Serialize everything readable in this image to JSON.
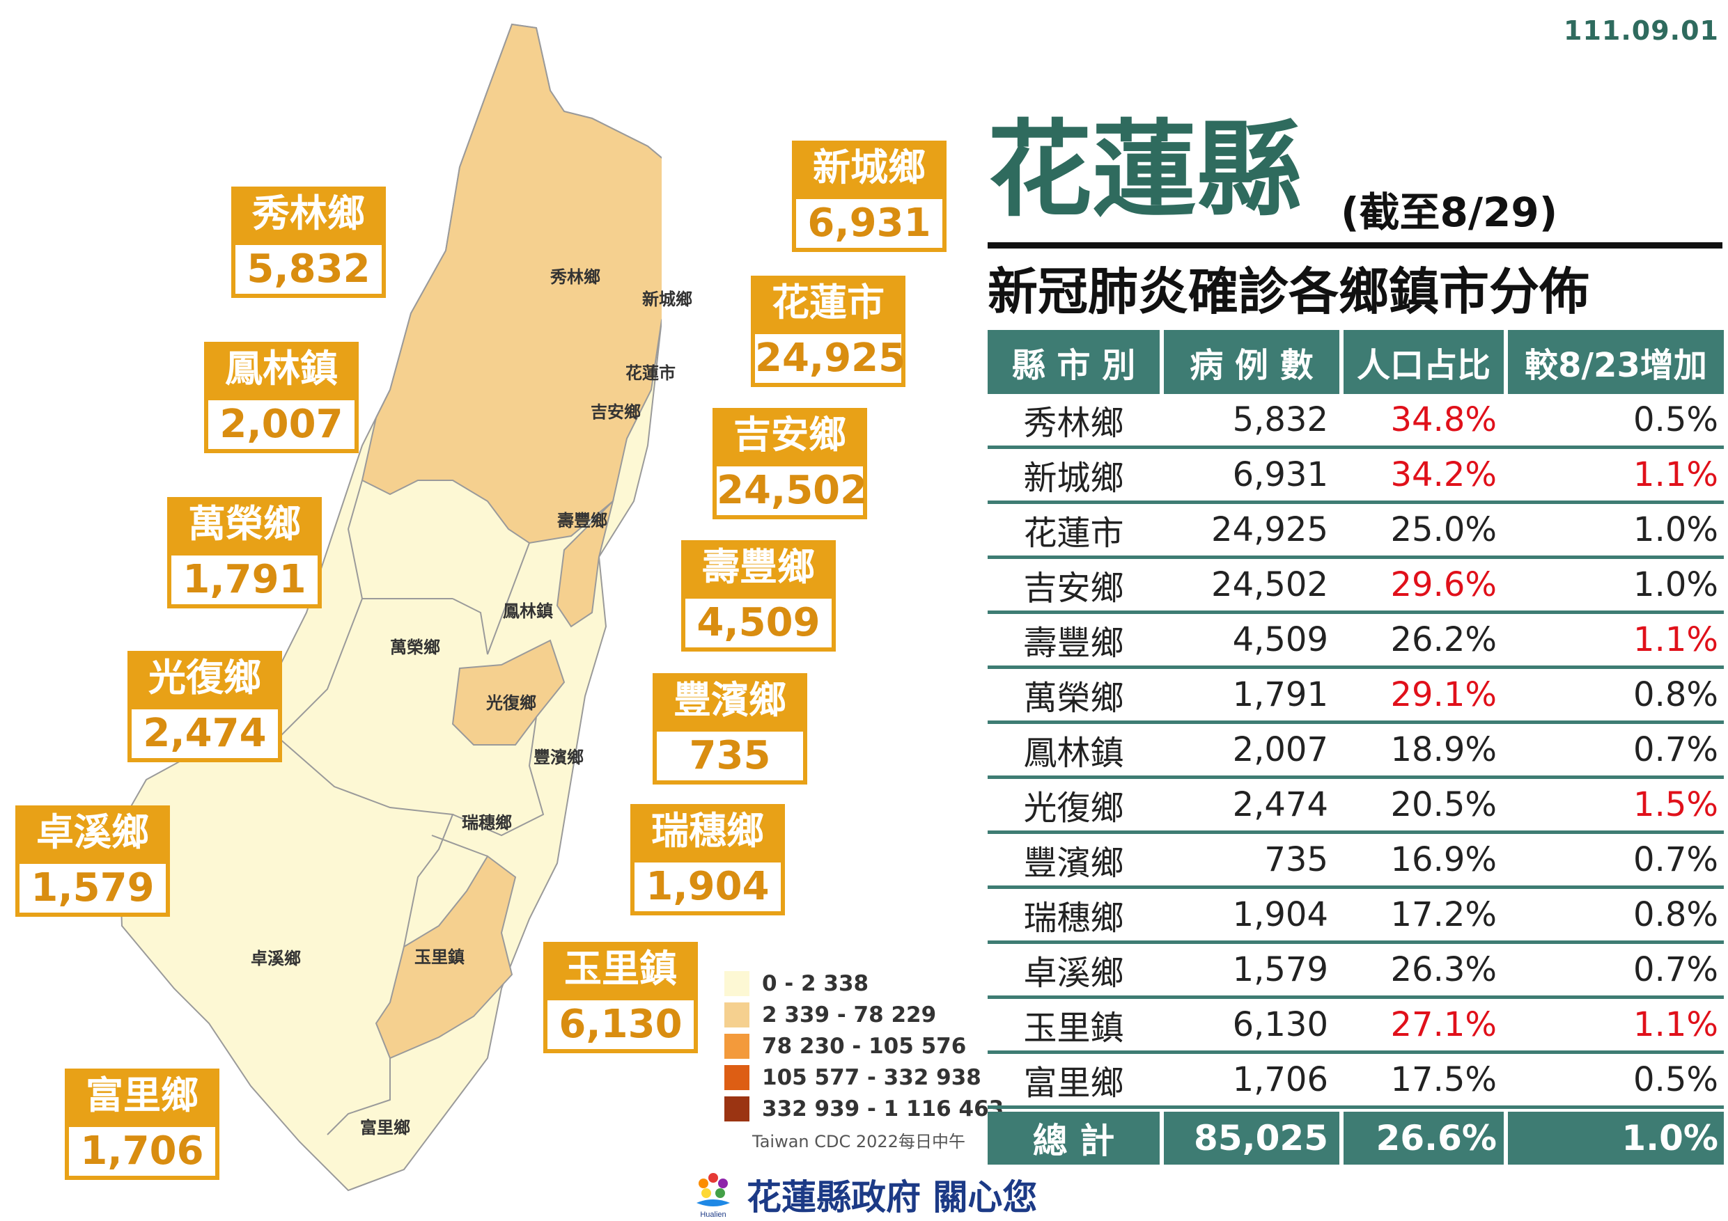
{
  "date": "111.09.01",
  "title": "花蓮縣",
  "title_note": "(截至8/29)",
  "subtitle": "新冠肺炎確診各鄉鎮市分佈",
  "table": {
    "headers": [
      "縣 市 別",
      "病 例 數",
      "人口占比",
      "較8/23增加"
    ],
    "rows": [
      {
        "name": "秀林鄉",
        "cases": "5,832",
        "ratio": "34.8%",
        "ratio_red": true,
        "inc": "0.5%",
        "inc_red": false
      },
      {
        "name": "新城鄉",
        "cases": "6,931",
        "ratio": "34.2%",
        "ratio_red": true,
        "inc": "1.1%",
        "inc_red": true
      },
      {
        "name": "花蓮市",
        "cases": "24,925",
        "ratio": "25.0%",
        "ratio_red": false,
        "inc": "1.0%",
        "inc_red": false
      },
      {
        "name": "吉安鄉",
        "cases": "24,502",
        "ratio": "29.6%",
        "ratio_red": true,
        "inc": "1.0%",
        "inc_red": false
      },
      {
        "name": "壽豐鄉",
        "cases": "4,509",
        "ratio": "26.2%",
        "ratio_red": false,
        "inc": "1.1%",
        "inc_red": true
      },
      {
        "name": "萬榮鄉",
        "cases": "1,791",
        "ratio": "29.1%",
        "ratio_red": true,
        "inc": "0.8%",
        "inc_red": false
      },
      {
        "name": "鳳林鎮",
        "cases": "2,007",
        "ratio": "18.9%",
        "ratio_red": false,
        "inc": "0.7%",
        "inc_red": false
      },
      {
        "name": "光復鄉",
        "cases": "2,474",
        "ratio": "20.5%",
        "ratio_red": false,
        "inc": "1.5%",
        "inc_red": true
      },
      {
        "name": "豐濱鄉",
        "cases": "735",
        "ratio": "16.9%",
        "ratio_red": false,
        "inc": "0.7%",
        "inc_red": false
      },
      {
        "name": "瑞穗鄉",
        "cases": "1,904",
        "ratio": "17.2%",
        "ratio_red": false,
        "inc": "0.8%",
        "inc_red": false
      },
      {
        "name": "卓溪鄉",
        "cases": "1,579",
        "ratio": "26.3%",
        "ratio_red": false,
        "inc": "0.7%",
        "inc_red": false
      },
      {
        "name": "玉里鎮",
        "cases": "6,130",
        "ratio": "27.1%",
        "ratio_red": true,
        "inc": "1.1%",
        "inc_red": true
      },
      {
        "name": "富里鄉",
        "cases": "1,706",
        "ratio": "17.5%",
        "ratio_red": false,
        "inc": "0.5%",
        "inc_red": false
      }
    ],
    "total": {
      "label": "總 計",
      "cases": "85,025",
      "ratio": "26.6%",
      "inc": "1.0%"
    }
  },
  "map_callouts": {
    "xiulin": {
      "name": "秀林鄉",
      "value": "5,832"
    },
    "xincheng": {
      "name": "新城鄉",
      "value": "6,931"
    },
    "hualien": {
      "name": "花蓮市",
      "value": "24,925"
    },
    "fenglin": {
      "name": "鳳林鎮",
      "value": "2,007"
    },
    "jian": {
      "name": "吉安鄉",
      "value": "24,502"
    },
    "wanrong": {
      "name": "萬榮鄉",
      "value": "1,791"
    },
    "shoufeng": {
      "name": "壽豐鄉",
      "value": "4,509"
    },
    "guangfu": {
      "name": "光復鄉",
      "value": "2,474"
    },
    "fengbin": {
      "name": "豐濱鄉",
      "value": "735"
    },
    "zhuoxi": {
      "name": "卓溪鄉",
      "value": "1,579"
    },
    "ruisui": {
      "name": "瑞穗鄉",
      "value": "1,904"
    },
    "yuli": {
      "name": "玉里鎮",
      "value": "6,130"
    },
    "fuli": {
      "name": "富里鄉",
      "value": "1,706"
    }
  },
  "map_region_names": {
    "xiulin": "秀林鄉",
    "xincheng": "新城鄉",
    "hualien": "花蓮市",
    "jian": "吉安鄉",
    "shoufeng": "壽豐鄉",
    "fenglin": "鳳林鎮",
    "wanrong": "萬榮鄉",
    "guangfu": "光復鄉",
    "fengbin": "豐濱鄉",
    "ruisui": "瑞穗鄉",
    "zhuoxi": "卓溪鄉",
    "yuli": "玉里鎮",
    "fuli": "富里鄉"
  },
  "legend": [
    {
      "label": "0 - 2 338",
      "color": "#fdf8d4"
    },
    {
      "label": "2 339 - 78 229",
      "color": "#f5d08f"
    },
    {
      "label": "78 230 - 105 576",
      "color": "#f39a3b"
    },
    {
      "label": "105 577 - 332 938",
      "color": "#dd5e14"
    },
    {
      "label": "332 939 - 1 116 463",
      "color": "#9b3412"
    }
  ],
  "credit": "Taiwan CDC 2022每日中午",
  "footer": {
    "logo_text": "Hualien",
    "text": "花蓮縣政府 關心您"
  },
  "colors": {
    "teal": "#3e7c73",
    "orange": "#e8a117",
    "light_fill": "#fdf8d4",
    "mid_fill": "#f5d08f",
    "red": "#e0101a"
  }
}
